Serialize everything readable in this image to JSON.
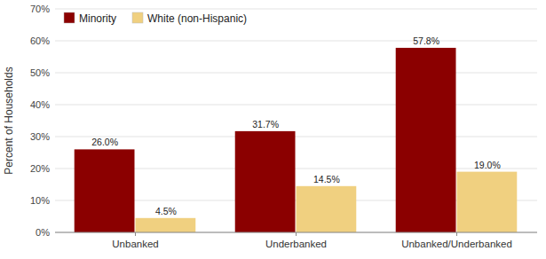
{
  "chart_data": {
    "type": "bar",
    "categories": [
      "Unbanked",
      "Underbanked",
      "Unbanked/Underbanked"
    ],
    "series": [
      {
        "name": "Minority",
        "color": "#8B0000",
        "values": [
          26.0,
          31.7,
          57.8
        ],
        "value_labels": [
          "26.0%",
          "31.7%",
          "57.8%"
        ]
      },
      {
        "name": "White (non-Hispanic)",
        "color": "#F0D080",
        "values": [
          4.5,
          14.5,
          19.0
        ],
        "value_labels": [
          "4.5%",
          "14.5%",
          "19.0%"
        ]
      }
    ],
    "ylabel": "Percent of Households",
    "ylim": [
      0,
      70
    ],
    "yticks": [
      {
        "value": 0,
        "label": "0%"
      },
      {
        "value": 10,
        "label": "10%"
      },
      {
        "value": 20,
        "label": "20%"
      },
      {
        "value": 30,
        "label": "30%"
      },
      {
        "value": 40,
        "label": "40%"
      },
      {
        "value": 50,
        "label": "50%"
      },
      {
        "value": 60,
        "label": "60%"
      },
      {
        "value": 70,
        "label": "70%"
      }
    ],
    "grid": true,
    "legend": "top-left",
    "data_labels": true
  }
}
